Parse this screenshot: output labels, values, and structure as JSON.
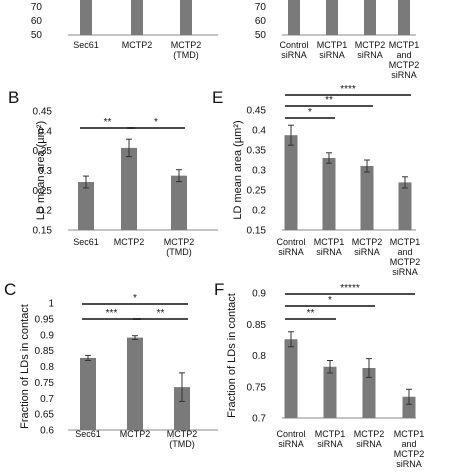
{
  "chart_data": [
    {
      "id": "top-left",
      "type": "bar",
      "categories": [
        [
          "Sec61"
        ],
        [
          "MCTP2"
        ],
        [
          "MCTP2",
          "(TMD)"
        ]
      ],
      "ylim": [
        50,
        90
      ],
      "ticks": [
        "70",
        "60",
        "50"
      ],
      "values": [
        null,
        null,
        null
      ]
    },
    {
      "id": "top-right",
      "type": "bar",
      "categories": [
        [
          "Control",
          "siRNA"
        ],
        [
          "MCTP1",
          "siRNA"
        ],
        [
          "MCTP2",
          "siRNA"
        ],
        [
          "MCTP1",
          "and",
          "MCTP2",
          "siRNA"
        ]
      ],
      "ylim": [
        50,
        90
      ],
      "ticks": [
        "70",
        "60",
        "50"
      ],
      "values": [
        null,
        null,
        null,
        null
      ]
    },
    {
      "id": "B",
      "panel_label": "B",
      "type": "bar",
      "ylabel": "LD mean area (µm²)",
      "categories": [
        [
          "Sec61"
        ],
        [
          "MCTP2"
        ],
        [
          "MCTP2",
          "(TMD)"
        ]
      ],
      "values": [
        0.271,
        0.357,
        0.287
      ],
      "errors": [
        0.015,
        0.022,
        0.015
      ],
      "ylim": [
        0.15,
        0.45
      ],
      "ticks": [
        "0.15",
        "0.2",
        "0.25",
        "0.3",
        "0.35",
        "0.4",
        "0.45"
      ],
      "significance": [
        {
          "from": 0,
          "to": 1,
          "label": "**"
        },
        {
          "from": 1,
          "to": 2,
          "label": "*"
        }
      ]
    },
    {
      "id": "E",
      "panel_label": "E",
      "type": "bar",
      "ylabel": "LD mean area (µm²)",
      "categories": [
        [
          "Control",
          "siRNA"
        ],
        [
          "MCTP1",
          "siRNA"
        ],
        [
          "MCTP2",
          "siRNA"
        ],
        [
          "MCTP1",
          "and",
          "MCTP2",
          "siRNA"
        ]
      ],
      "values": [
        0.387,
        0.33,
        0.31,
        0.269
      ],
      "errors": [
        0.025,
        0.013,
        0.015,
        0.014
      ],
      "ylim": [
        0.15,
        0.45
      ],
      "ticks": [
        "0.15",
        "0.2",
        "0.25",
        "0.3",
        "0.35",
        "0.4",
        "0.45"
      ],
      "significance": [
        {
          "from": 0,
          "to": 1,
          "label": "*"
        },
        {
          "from": 0,
          "to": 2,
          "label": "**"
        },
        {
          "from": 0,
          "to": 3,
          "label": "****"
        }
      ]
    },
    {
      "id": "C",
      "panel_label": "C",
      "type": "bar",
      "ylabel": "Fraction of LDs in contact",
      "categories": [
        [
          "Sec61"
        ],
        [
          "MCTP2"
        ],
        [
          "MCTP2",
          "(TMD)"
        ]
      ],
      "values": [
        0.827,
        0.891,
        0.735
      ],
      "errors": [
        0.008,
        0.006,
        0.045
      ],
      "ylim": [
        0.6,
        1.0
      ],
      "ticks": [
        "0.6",
        "0.65",
        "0.7",
        "0.75",
        "0.8",
        "0.85",
        "0.9",
        "0.95",
        "1"
      ],
      "significance": [
        {
          "from": 0,
          "to": 1,
          "label": "***"
        },
        {
          "from": 1,
          "to": 2,
          "label": "**"
        },
        {
          "from": 0,
          "to": 2,
          "label": "*"
        }
      ]
    },
    {
      "id": "F",
      "panel_label": "F",
      "type": "bar",
      "ylabel": "Fraction of LDs in contact",
      "categories": [
        [
          "Control",
          "siRNA"
        ],
        [
          "MCTP1",
          "siRNA"
        ],
        [
          "MCTP2",
          "siRNA"
        ],
        [
          "MCTP1",
          "and",
          "MCTP2",
          "siRNA"
        ]
      ],
      "values": [
        0.826,
        0.782,
        0.78,
        0.734
      ],
      "errors": [
        0.012,
        0.01,
        0.015,
        0.012
      ],
      "ylim": [
        0.7,
        0.9
      ],
      "ticks": [
        "0.7",
        "0.75",
        "0.8",
        "0.85",
        "0.9"
      ],
      "significance": [
        {
          "from": 0,
          "to": 1,
          "label": "**"
        },
        {
          "from": 0,
          "to": 2,
          "label": "*"
        },
        {
          "from": 0,
          "to": 3,
          "label": "*****"
        }
      ]
    }
  ],
  "colors": {
    "bar": "#7a7a7a",
    "axis": "#8a8a8a",
    "text": "#111111"
  }
}
